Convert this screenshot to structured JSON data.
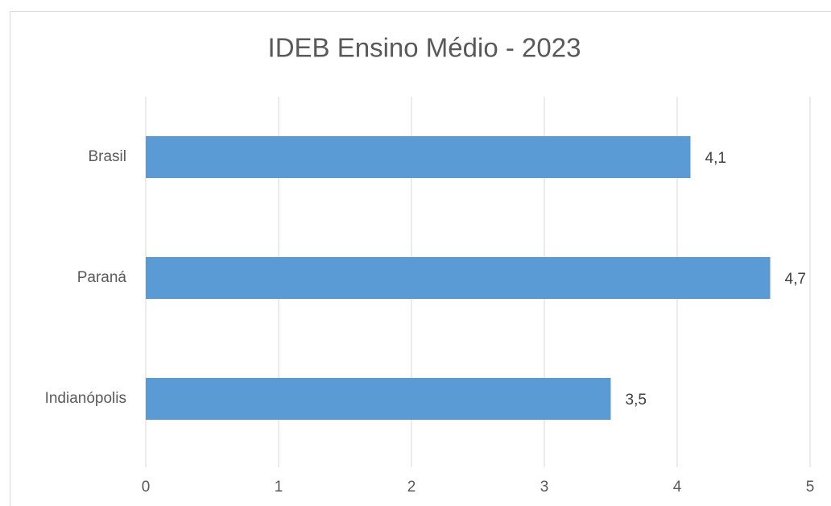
{
  "chart_data": {
    "type": "bar",
    "orientation": "horizontal",
    "title": "IDEB Ensino Médio - 2023",
    "categories": [
      "Brasil",
      "Paraná",
      "Indianópolis"
    ],
    "values": [
      4.1,
      4.7,
      3.5
    ],
    "value_labels": [
      "4,1",
      "4,7",
      "3,5"
    ],
    "color": "#5b9bd5",
    "xlim": [
      0,
      5
    ],
    "xticks": [
      0,
      1,
      2,
      3,
      4,
      5
    ],
    "grid": true
  }
}
